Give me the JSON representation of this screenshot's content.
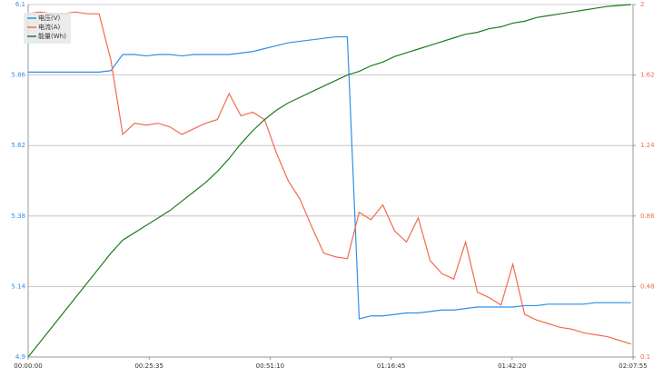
{
  "chart_data": {
    "type": "line",
    "x": [
      0,
      150,
      300,
      450,
      600,
      750,
      900,
      1050,
      1200,
      1350,
      1500,
      1650,
      1800,
      1950,
      2100,
      2250,
      2400,
      2550,
      2700,
      2850,
      3000,
      3150,
      3300,
      3450,
      3600,
      3750,
      3900,
      4050,
      4200,
      4350,
      4500,
      4650,
      4800,
      4950,
      5100,
      5250,
      5400,
      5550,
      5700,
      5850,
      6000,
      6150,
      6300,
      6450,
      6600,
      6750,
      6900,
      7050,
      7200,
      7350,
      7500,
      7650
    ],
    "xlim": [
      0,
      7675
    ],
    "xticks": [
      {
        "value": 0,
        "label": "00:00:00"
      },
      {
        "value": 1535,
        "label": "00:25:35"
      },
      {
        "value": 3070,
        "label": "00:51:10"
      },
      {
        "value": 4605,
        "label": "01:16:45"
      },
      {
        "value": 6140,
        "label": "01:42:20"
      },
      {
        "value": 7675,
        "label": "02:07:55"
      }
    ],
    "ylim": [
      4.9,
      6.1
    ],
    "yticks": [
      4.9,
      5.14,
      5.38,
      5.62,
      5.86,
      6.1
    ],
    "y2lim": [
      0.1,
      2
    ],
    "y2ticks": [
      0.1,
      0.48,
      0.86,
      1.24,
      1.62,
      2
    ],
    "grid": true,
    "legend": "top-left",
    "series": [
      {
        "name": "电压(V)",
        "color": "#2f8fe8",
        "values": [
          5.87,
          5.87,
          5.87,
          5.87,
          5.87,
          5.87,
          5.87,
          5.875,
          5.93,
          5.93,
          5.925,
          5.93,
          5.93,
          5.925,
          5.93,
          5.93,
          5.93,
          5.93,
          5.935,
          5.94,
          5.95,
          5.96,
          5.97,
          5.975,
          5.98,
          5.985,
          5.99,
          5.99,
          5.03,
          5.04,
          5.04,
          5.045,
          5.05,
          5.05,
          5.055,
          5.06,
          5.06,
          5.065,
          5.07,
          5.07,
          5.07,
          5.07,
          5.075,
          5.075,
          5.08,
          5.08,
          5.08,
          5.08,
          5.085,
          5.085,
          5.085,
          5.085
        ]
      },
      {
        "name": "电流(A)",
        "color": "#f26b50",
        "axis": "y2",
        "values": [
          1.95,
          1.96,
          1.95,
          1.95,
          1.96,
          1.95,
          1.95,
          1.7,
          1.3,
          1.36,
          1.35,
          1.36,
          1.34,
          1.3,
          1.33,
          1.36,
          1.38,
          1.52,
          1.4,
          1.42,
          1.38,
          1.2,
          1.05,
          0.95,
          0.8,
          0.66,
          0.64,
          0.63,
          0.88,
          0.84,
          0.92,
          0.78,
          0.72,
          0.85,
          0.62,
          0.55,
          0.52,
          0.72,
          0.45,
          0.42,
          0.38,
          0.6,
          0.33,
          0.3,
          0.28,
          0.26,
          0.25,
          0.23,
          0.22,
          0.21,
          0.19,
          0.17
        ]
      },
      {
        "name": "能量(Wh)",
        "color": "#1f7a1f",
        "axis": "y2",
        "values": [
          0.1,
          0.18,
          0.26,
          0.34,
          0.42,
          0.5,
          0.58,
          0.66,
          0.73,
          0.77,
          0.81,
          0.85,
          0.89,
          0.94,
          0.99,
          1.04,
          1.1,
          1.17,
          1.25,
          1.32,
          1.38,
          1.43,
          1.47,
          1.5,
          1.53,
          1.56,
          1.59,
          1.62,
          1.64,
          1.67,
          1.69,
          1.72,
          1.74,
          1.76,
          1.78,
          1.8,
          1.82,
          1.84,
          1.85,
          1.87,
          1.88,
          1.9,
          1.91,
          1.93,
          1.94,
          1.95,
          1.96,
          1.97,
          1.98,
          1.99,
          1.995,
          2
        ]
      }
    ]
  }
}
